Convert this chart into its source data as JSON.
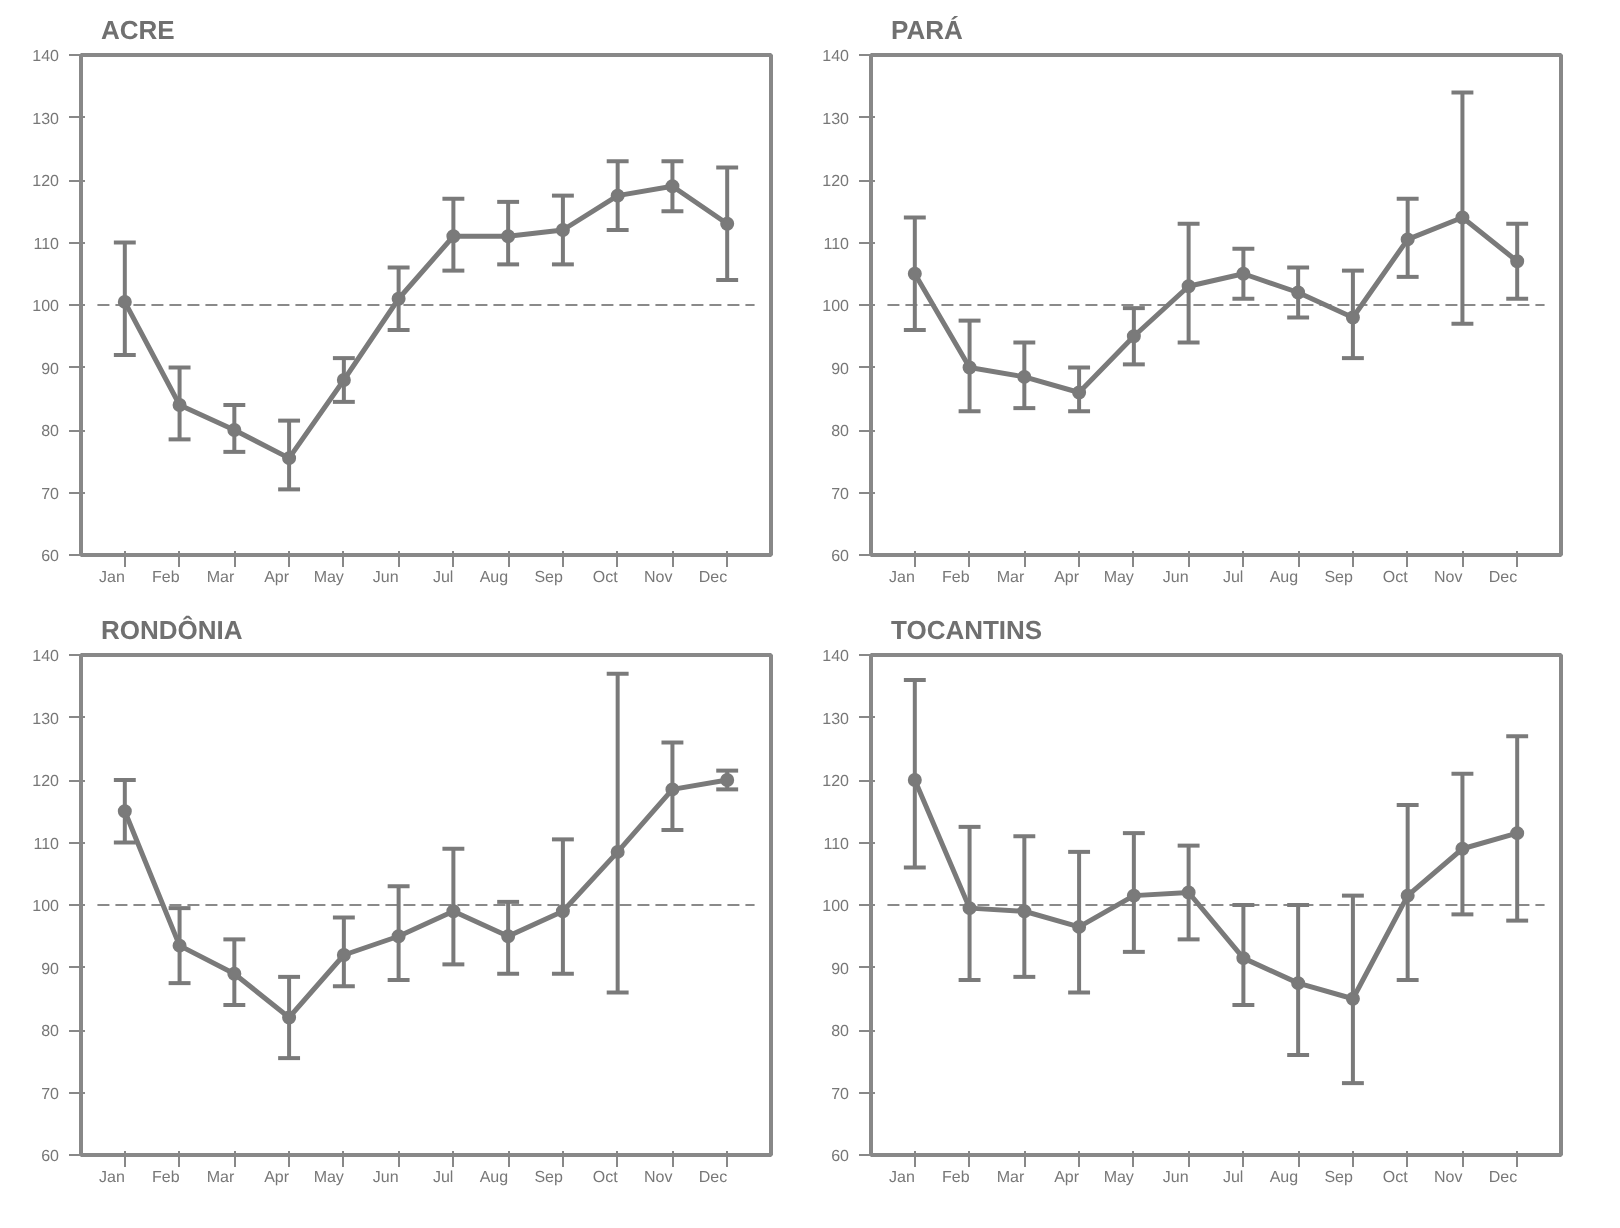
{
  "chart_data": [
    {
      "type": "line",
      "title": "ACRE",
      "categories": [
        "Jan",
        "Feb",
        "Mar",
        "Apr",
        "May",
        "Jun",
        "Jul",
        "Aug",
        "Sep",
        "Oct",
        "Nov",
        "Dec"
      ],
      "series": [
        {
          "color": "#7a7a7a",
          "values": [
            100.5,
            84,
            80,
            75.5,
            88,
            101,
            111,
            111,
            112,
            117.5,
            119,
            113
          ],
          "errors": [
            [
              92,
              110
            ],
            [
              78.5,
              90
            ],
            [
              76.5,
              84
            ],
            [
              70.5,
              81.5
            ],
            [
              84.5,
              91.5
            ],
            [
              96,
              106
            ],
            [
              105.5,
              117
            ],
            [
              106.5,
              116.5
            ],
            [
              106.5,
              117.5
            ],
            [
              112,
              123
            ],
            [
              115,
              123
            ],
            [
              104,
              122
            ]
          ]
        }
      ],
      "ylim": [
        60,
        140
      ],
      "yticks": [
        60,
        70,
        80,
        90,
        100,
        110,
        120,
        130,
        140
      ],
      "ref_lines": [
        {
          "axis": "y",
          "value": 100,
          "line_style": "dashed",
          "color": "#8a8a8a"
        }
      ],
      "marker": "circle",
      "line_style": "solid",
      "grid": false
    },
    {
      "type": "line",
      "title": "PARÁ",
      "categories": [
        "Jan",
        "Feb",
        "Mar",
        "Apr",
        "May",
        "Jun",
        "Jul",
        "Aug",
        "Sep",
        "Oct",
        "Nov",
        "Dec"
      ],
      "series": [
        {
          "color": "#7a7a7a",
          "values": [
            105,
            90,
            88.5,
            86,
            95,
            103,
            105,
            102,
            98,
            110.5,
            114,
            107
          ],
          "errors": [
            [
              96,
              114
            ],
            [
              83,
              97.5
            ],
            [
              83.5,
              94
            ],
            [
              83,
              90
            ],
            [
              90.5,
              99.5
            ],
            [
              94,
              113
            ],
            [
              101,
              109
            ],
            [
              98,
              106
            ],
            [
              91.5,
              105.5
            ],
            [
              104.5,
              117
            ],
            [
              97,
              134
            ],
            [
              101,
              113
            ]
          ]
        }
      ],
      "ylim": [
        60,
        140
      ],
      "yticks": [
        60,
        70,
        80,
        90,
        100,
        110,
        120,
        130,
        140
      ],
      "ref_lines": [
        {
          "axis": "y",
          "value": 100,
          "line_style": "dashed",
          "color": "#8a8a8a"
        }
      ],
      "marker": "circle",
      "line_style": "solid",
      "grid": false
    },
    {
      "type": "line",
      "title": "RONDÔNIA",
      "categories": [
        "Jan",
        "Feb",
        "Mar",
        "Apr",
        "May",
        "Jun",
        "Jul",
        "Aug",
        "Sep",
        "Oct",
        "Nov",
        "Dec"
      ],
      "series": [
        {
          "color": "#7a7a7a",
          "values": [
            115,
            93.5,
            89,
            82,
            92,
            95,
            99,
            95,
            99,
            108.5,
            118.5,
            120
          ],
          "errors": [
            [
              110,
              120
            ],
            [
              87.5,
              99.5
            ],
            [
              84,
              94.5
            ],
            [
              75.5,
              88.5
            ],
            [
              87,
              98
            ],
            [
              88,
              103
            ],
            [
              90.5,
              109
            ],
            [
              89,
              100.5
            ],
            [
              89,
              110.5
            ],
            [
              86,
              137
            ],
            [
              112,
              126
            ],
            [
              118.5,
              121.5
            ]
          ]
        }
      ],
      "ylim": [
        60,
        140
      ],
      "yticks": [
        60,
        70,
        80,
        90,
        100,
        110,
        120,
        130,
        140
      ],
      "ref_lines": [
        {
          "axis": "y",
          "value": 100,
          "line_style": "dashed",
          "color": "#8a8a8a"
        }
      ],
      "marker": "circle",
      "line_style": "solid",
      "grid": false
    },
    {
      "type": "line",
      "title": "TOCANTINS",
      "categories": [
        "Jan",
        "Feb",
        "Mar",
        "Apr",
        "May",
        "Jun",
        "Jul",
        "Aug",
        "Sep",
        "Oct",
        "Nov",
        "Dec"
      ],
      "series": [
        {
          "color": "#7a7a7a",
          "values": [
            120,
            99.5,
            99,
            96.5,
            101.5,
            102,
            91.5,
            87.5,
            85,
            101.5,
            109,
            111.5
          ],
          "errors": [
            [
              106,
              136
            ],
            [
              88,
              112.5
            ],
            [
              88.5,
              111
            ],
            [
              86,
              108.5
            ],
            [
              92.5,
              111.5
            ],
            [
              94.5,
              109.5
            ],
            [
              84,
              100
            ],
            [
              76,
              100
            ],
            [
              71.5,
              101.5
            ],
            [
              88,
              116
            ],
            [
              98.5,
              121
            ],
            [
              97.5,
              127
            ]
          ]
        }
      ],
      "ylim": [
        60,
        140
      ],
      "yticks": [
        60,
        70,
        80,
        90,
        100,
        110,
        120,
        130,
        140
      ],
      "ref_lines": [
        {
          "axis": "y",
          "value": 100,
          "line_style": "dashed",
          "color": "#8a8a8a"
        }
      ],
      "marker": "circle",
      "line_style": "solid",
      "grid": false
    }
  ]
}
